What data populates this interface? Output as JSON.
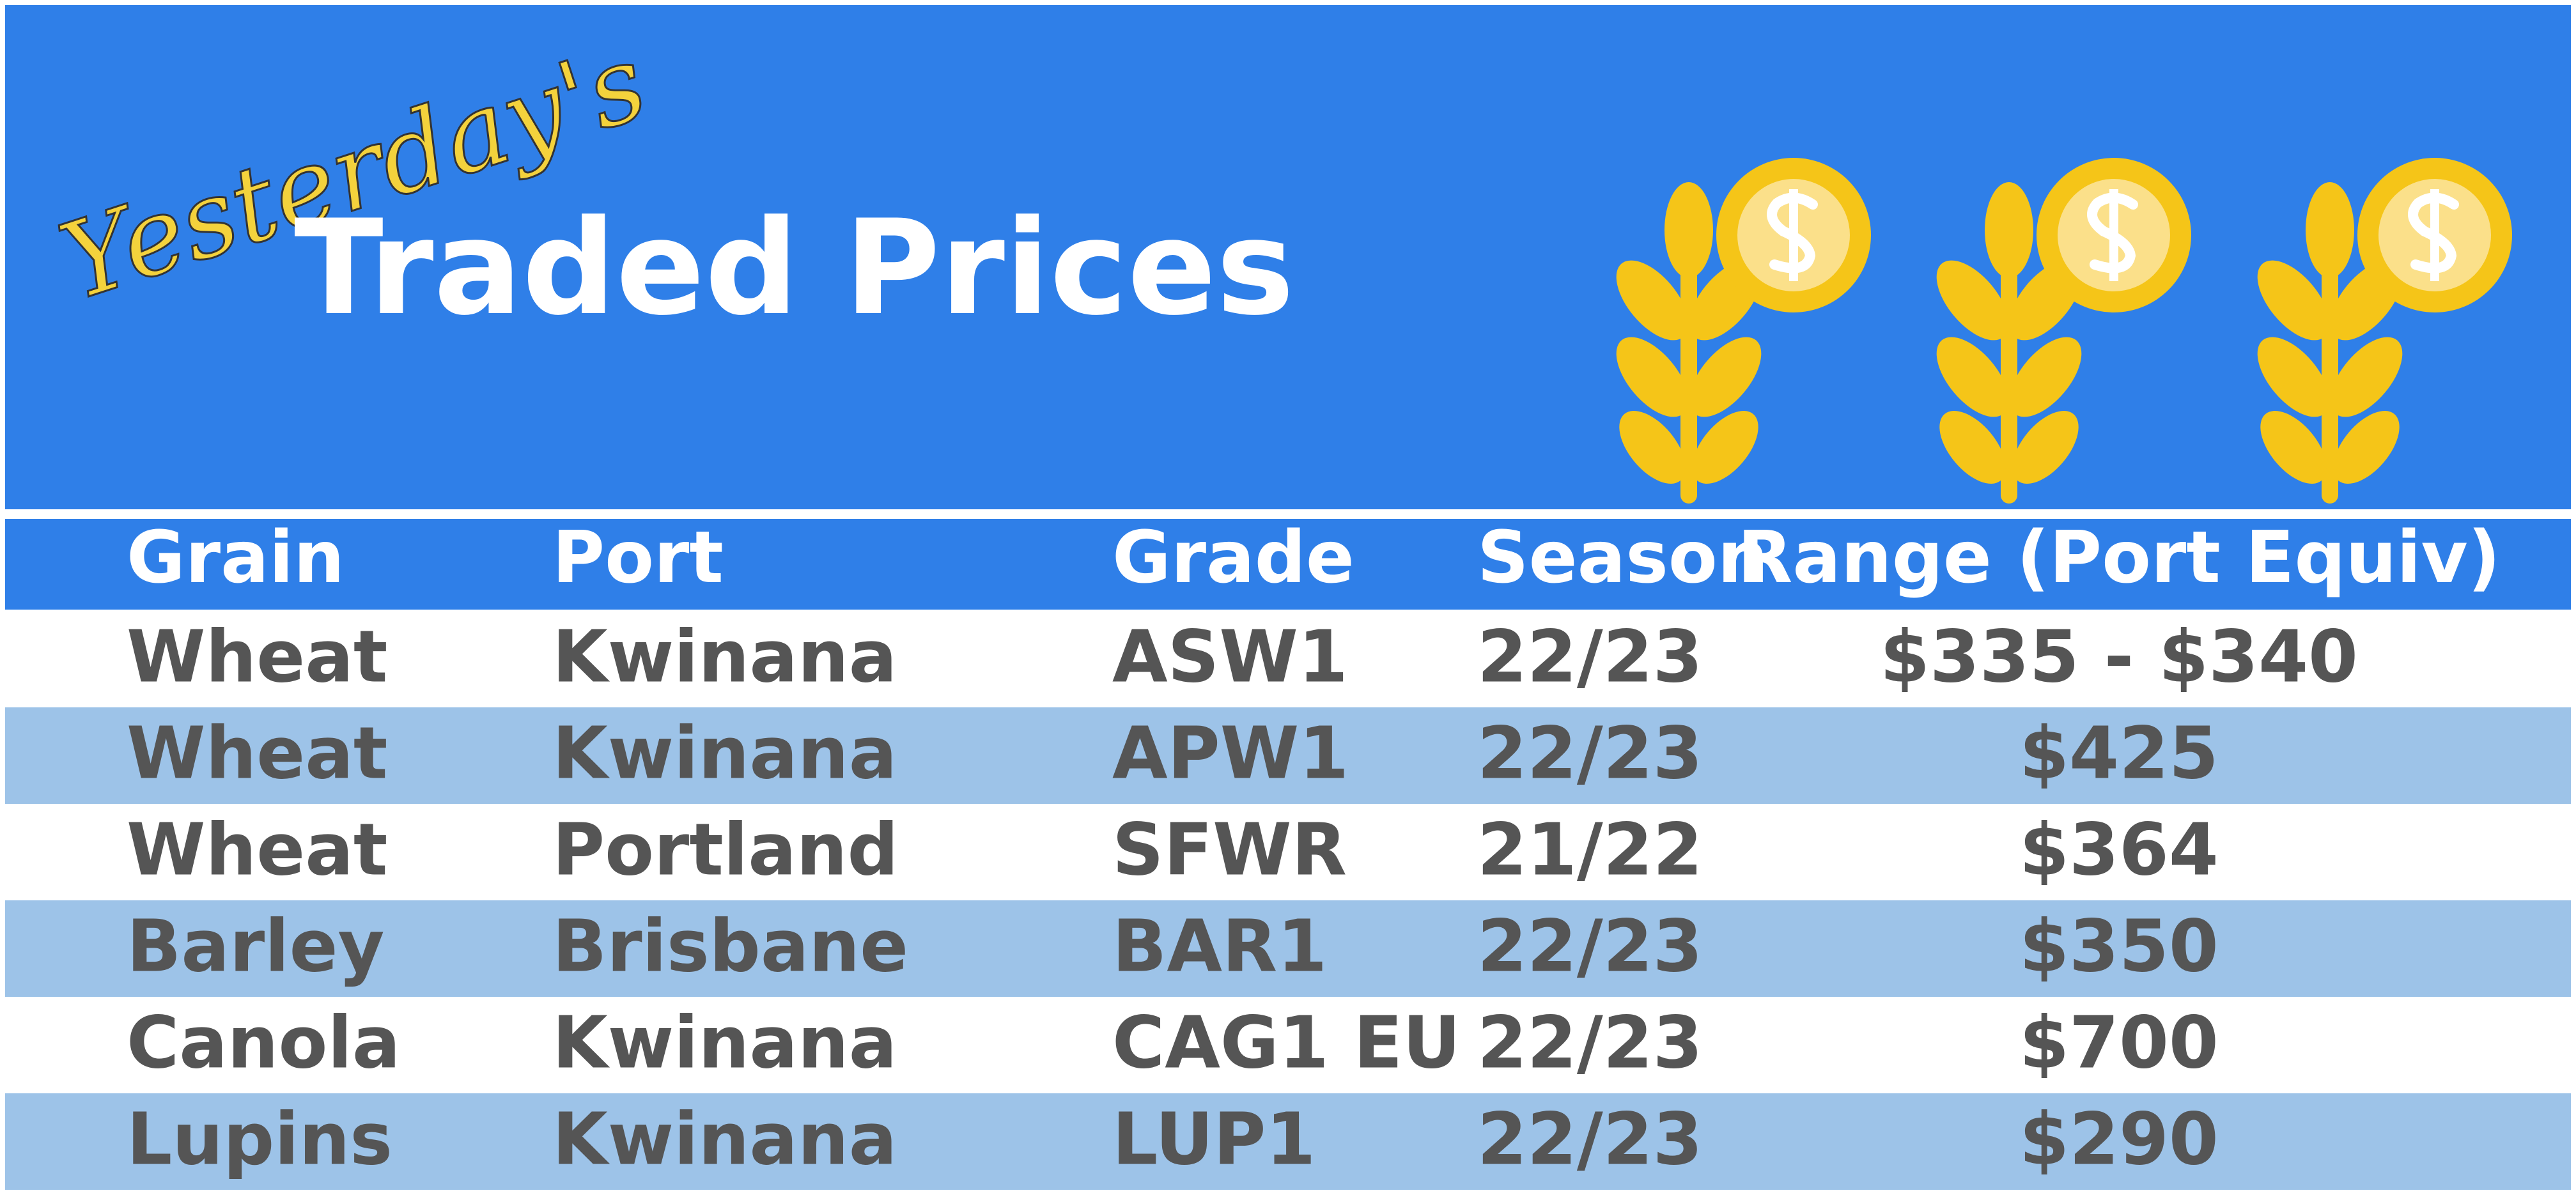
{
  "header": {
    "subtitle": "Yesterday's",
    "title": "Traded Prices"
  },
  "table": {
    "columns": [
      "Grain",
      "Port",
      "Grade",
      "Season",
      "Range (Port Equiv)"
    ],
    "rows": [
      [
        "Wheat",
        "Kwinana",
        "ASW1",
        "22/23",
        "$335 - $340"
      ],
      [
        "Wheat",
        "Kwinana",
        "APW1",
        "22/23",
        "$425"
      ],
      [
        "Wheat",
        "Portland",
        "SFWR",
        "21/22",
        "$364"
      ],
      [
        "Barley",
        "Brisbane",
        "BAR1",
        "22/23",
        "$350"
      ],
      [
        "Canola",
        "Kwinana",
        "CAG1 EU",
        "22/23",
        "$700"
      ],
      [
        "Lupins",
        "Kwinana",
        "LUP1",
        "22/23",
        "$290"
      ]
    ]
  }
}
